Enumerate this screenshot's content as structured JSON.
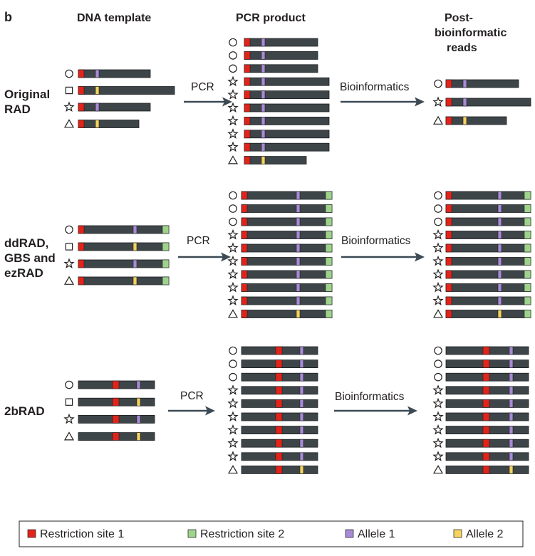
{
  "panel_letter": "b",
  "column_headers": {
    "template": "DNA template",
    "pcr": "PCR product",
    "post": [
      "Post-",
      "bioinformatic",
      "reads"
    ]
  },
  "arrow_labels": {
    "pcr": "PCR",
    "bio": "Bioinformatics"
  },
  "legend": [
    {
      "label": "Restriction site 1",
      "color": "#e2231a"
    },
    {
      "label": "Restriction site 2",
      "color": "#9fd38c"
    },
    {
      "label": "Allele 1",
      "color": "#a98ad6"
    },
    {
      "label": "Allele 2",
      "color": "#f4d35e"
    }
  ],
  "colors": {
    "bar": "#3e4549",
    "bar_edge": "#1c1f21",
    "arrow": "#3b4a54",
    "restriction_site_1": "#e2231a",
    "restriction_site_2": "#9fd38c",
    "allele_1": "#a98ad6",
    "allele_2": "#f4d35e"
  },
  "rows": [
    {
      "label": [
        "Original",
        "RAD"
      ],
      "template": [
        {
          "symbol": "circle",
          "allele": 1,
          "length": "medium"
        },
        {
          "symbol": "square",
          "allele": 2,
          "length": "long"
        },
        {
          "symbol": "star",
          "allele": 1,
          "length": "medium"
        },
        {
          "symbol": "triangle",
          "allele": 2,
          "length": "short"
        }
      ],
      "pcr": [
        {
          "symbol": "circle",
          "allele": 1,
          "length": "medium"
        },
        {
          "symbol": "circle",
          "allele": 1,
          "length": "medium"
        },
        {
          "symbol": "circle",
          "allele": 1,
          "length": "medium"
        },
        {
          "symbol": "star",
          "allele": 1,
          "length": "long"
        },
        {
          "symbol": "star",
          "allele": 1,
          "length": "long"
        },
        {
          "symbol": "star",
          "allele": 1,
          "length": "long"
        },
        {
          "symbol": "star",
          "allele": 1,
          "length": "long"
        },
        {
          "symbol": "star",
          "allele": 1,
          "length": "long"
        },
        {
          "symbol": "star",
          "allele": 1,
          "length": "long"
        },
        {
          "symbol": "triangle",
          "allele": 2,
          "length": "short"
        }
      ],
      "post": [
        {
          "symbol": "circle",
          "allele": 1,
          "length": "medium"
        },
        {
          "symbol": "star",
          "allele": 1,
          "length": "long"
        },
        {
          "symbol": "triangle",
          "allele": 2,
          "length": "short"
        }
      ]
    },
    {
      "label": [
        "ddRAD,",
        "GBS and",
        "ezRAD"
      ],
      "template": [
        {
          "symbol": "circle",
          "allele": 1
        },
        {
          "symbol": "square",
          "allele": 2
        },
        {
          "symbol": "star",
          "allele": 1
        },
        {
          "symbol": "triangle",
          "allele": 2
        }
      ],
      "pcr": [
        {
          "symbol": "circle",
          "allele": 1
        },
        {
          "symbol": "circle",
          "allele": 1
        },
        {
          "symbol": "circle",
          "allele": 1
        },
        {
          "symbol": "star",
          "allele": 1
        },
        {
          "symbol": "star",
          "allele": 1
        },
        {
          "symbol": "star",
          "allele": 1
        },
        {
          "symbol": "star",
          "allele": 1
        },
        {
          "symbol": "star",
          "allele": 1
        },
        {
          "symbol": "star",
          "allele": 1
        },
        {
          "symbol": "triangle",
          "allele": 2
        }
      ],
      "post": [
        {
          "symbol": "circle",
          "allele": 1
        },
        {
          "symbol": "circle",
          "allele": 1
        },
        {
          "symbol": "circle",
          "allele": 1
        },
        {
          "symbol": "star",
          "allele": 1
        },
        {
          "symbol": "star",
          "allele": 1
        },
        {
          "symbol": "star",
          "allele": 1
        },
        {
          "symbol": "star",
          "allele": 1
        },
        {
          "symbol": "star",
          "allele": 1
        },
        {
          "symbol": "star",
          "allele": 1
        },
        {
          "symbol": "triangle",
          "allele": 2
        }
      ]
    },
    {
      "label": [
        "2bRAD"
      ],
      "template": [
        {
          "symbol": "circle",
          "allele": 1
        },
        {
          "symbol": "square",
          "allele": 2
        },
        {
          "symbol": "star",
          "allele": 1
        },
        {
          "symbol": "triangle",
          "allele": 2
        }
      ],
      "pcr": [
        {
          "symbol": "circle",
          "allele": 1
        },
        {
          "symbol": "circle",
          "allele": 1
        },
        {
          "symbol": "circle",
          "allele": 1
        },
        {
          "symbol": "star",
          "allele": 1
        },
        {
          "symbol": "star",
          "allele": 1
        },
        {
          "symbol": "star",
          "allele": 1
        },
        {
          "symbol": "star",
          "allele": 1
        },
        {
          "symbol": "star",
          "allele": 1
        },
        {
          "symbol": "star",
          "allele": 1
        },
        {
          "symbol": "triangle",
          "allele": 2
        }
      ],
      "post": [
        {
          "symbol": "circle",
          "allele": 1
        },
        {
          "symbol": "circle",
          "allele": 1
        },
        {
          "symbol": "circle",
          "allele": 1
        },
        {
          "symbol": "star",
          "allele": 1
        },
        {
          "symbol": "star",
          "allele": 1
        },
        {
          "symbol": "star",
          "allele": 1
        },
        {
          "symbol": "star",
          "allele": 1
        },
        {
          "symbol": "star",
          "allele": 1
        },
        {
          "symbol": "star",
          "allele": 1
        },
        {
          "symbol": "triangle",
          "allele": 2
        }
      ]
    }
  ]
}
